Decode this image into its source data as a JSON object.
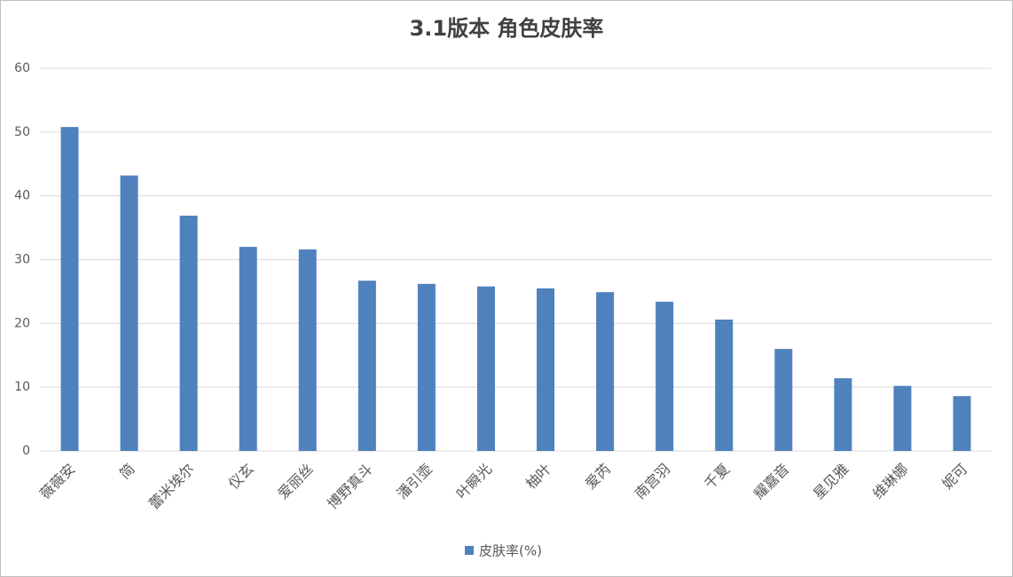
{
  "chart_data": {
    "type": "bar",
    "title": "3.1版本 角色皮肤率",
    "categories": [
      "薇薇安",
      "简",
      "蕾米埃尔",
      "仪玄",
      "爱丽丝",
      "博野真斗",
      "潘引壶",
      "叶瞬光",
      "柚叶",
      "爱芮",
      "南宫羽",
      "千夏",
      "耀嘉音",
      "星见雅",
      "维琳娜",
      "妮可"
    ],
    "series": [
      {
        "name": "皮肤率(%)",
        "color": "#4f81bd",
        "values": [
          50.8,
          43.2,
          36.9,
          32.0,
          31.6,
          26.7,
          26.2,
          25.8,
          25.5,
          24.9,
          23.4,
          20.6,
          16.0,
          11.4,
          10.2,
          8.6
        ]
      }
    ],
    "ylim": [
      0,
      60
    ],
    "yticks": [
      0,
      10,
      20,
      30,
      40,
      50,
      60
    ],
    "grid": true,
    "legend": "bottom"
  }
}
